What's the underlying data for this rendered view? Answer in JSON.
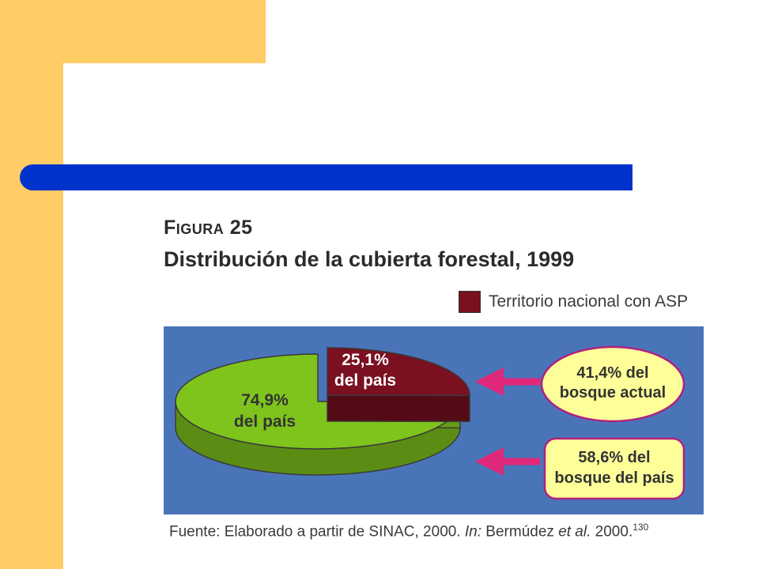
{
  "figure": {
    "kicker": "Figura 25",
    "title": "Distribución de la cubierta forestal, 1999"
  },
  "legend": {
    "label": "Territorio nacional con ASP",
    "color": "#7a1020"
  },
  "chart_data": {
    "type": "pie",
    "slices": [
      {
        "value": 25.1,
        "label_line1": "25,1%",
        "label_line2": "del país",
        "color": "#7a1020"
      },
      {
        "value": 74.9,
        "label_line1": "74,9%",
        "label_line2": "del país",
        "color": "#7ec41c"
      }
    ],
    "callouts": [
      {
        "line1": "41,4% del",
        "line2": "bosque actual",
        "fill": "#ffff99"
      },
      {
        "line1": "58,6% del",
        "line2": "bosque del país",
        "fill": "#ffff99"
      }
    ],
    "background": "#4a74b8",
    "arrow_color": "#e0287a"
  },
  "source": {
    "prefix": "Fuente: Elaborado a partir de SINAC, 2000.",
    "in_word": "In:",
    "author": "Bermúdez",
    "etal": "et al.",
    "year": "2000.",
    "ref": "130"
  }
}
